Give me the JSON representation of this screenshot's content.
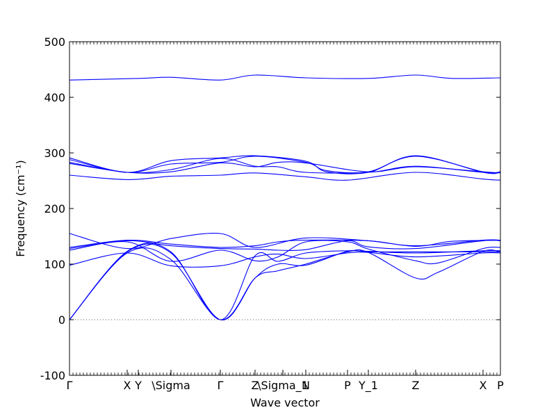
{
  "chart_data": {
    "type": "line",
    "xlabel": "Wave vector",
    "ylabel": "Frequency (cm⁻¹)",
    "ylim": [
      -100,
      500
    ],
    "y_ticks": [
      -100,
      0,
      100,
      200,
      300,
      400,
      500
    ],
    "x_range": [
      0,
      6.2
    ],
    "zero_line": {
      "y": 0,
      "style": "dotted"
    },
    "grid": false,
    "colors": {
      "series": "#0000ff",
      "axes": "#000000",
      "zero_line": "#555555"
    },
    "x_labels": [
      {
        "x": 0.0,
        "text": "Γ"
      },
      {
        "x": 0.83,
        "text": "X"
      },
      {
        "x": 0.99,
        "text": "Y"
      },
      {
        "x": 1.46,
        "text": "\\Sigma"
      },
      {
        "x": 2.17,
        "text": "Γ"
      },
      {
        "x": 2.67,
        "text": "Z"
      },
      {
        "x": 3.07,
        "text": "\\Sigma_1"
      },
      {
        "x": 3.4,
        "text": "N"
      },
      {
        "x": 4.0,
        "text": "P"
      },
      {
        "x": 4.3,
        "text": "Y_1"
      },
      {
        "x": 4.98,
        "text": "Z"
      },
      {
        "x": 5.95,
        "text": "X"
      },
      {
        "x": 6.2,
        "text": "P"
      }
    ],
    "series": [
      {
        "points": [
          [
            0,
            431
          ],
          [
            1.0,
            434
          ],
          [
            1.46,
            436
          ],
          [
            2.17,
            431
          ],
          [
            2.67,
            440
          ],
          [
            3.4,
            435
          ],
          [
            4.3,
            434
          ],
          [
            4.98,
            440
          ],
          [
            5.5,
            434
          ],
          [
            6.2,
            435
          ]
        ]
      },
      {
        "points": [
          [
            0,
            291
          ],
          [
            0.83,
            265
          ],
          [
            1.46,
            286
          ],
          [
            2.17,
            291
          ],
          [
            2.67,
            295
          ],
          [
            3.4,
            285
          ],
          [
            3.7,
            266
          ],
          [
            4.3,
            265
          ],
          [
            4.98,
            295
          ],
          [
            5.95,
            265
          ],
          [
            6.2,
            265
          ]
        ]
      },
      {
        "points": [
          [
            0,
            288
          ],
          [
            0.83,
            265
          ],
          [
            1.46,
            280
          ],
          [
            2.17,
            283
          ],
          [
            2.67,
            294
          ],
          [
            3.4,
            283
          ],
          [
            3.7,
            268
          ],
          [
            4.3,
            266
          ],
          [
            4.98,
            294
          ],
          [
            5.95,
            266
          ],
          [
            6.2,
            266
          ]
        ]
      },
      {
        "points": [
          [
            0,
            283
          ],
          [
            0.83,
            265
          ],
          [
            1.46,
            270
          ],
          [
            2.17,
            290
          ],
          [
            2.67,
            276
          ],
          [
            3.0,
            275
          ],
          [
            3.4,
            265
          ],
          [
            4.3,
            265
          ],
          [
            4.98,
            276
          ],
          [
            5.95,
            265
          ],
          [
            6.2,
            265
          ]
        ]
      },
      {
        "points": [
          [
            0,
            281
          ],
          [
            0.83,
            265
          ],
          [
            1.46,
            266
          ],
          [
            2.17,
            282
          ],
          [
            2.67,
            275
          ],
          [
            3.0,
            283
          ],
          [
            3.4,
            282
          ],
          [
            4.3,
            266
          ],
          [
            4.98,
            275
          ],
          [
            5.95,
            266
          ],
          [
            6.2,
            264
          ]
        ]
      },
      {
        "points": [
          [
            0,
            260
          ],
          [
            0.83,
            252
          ],
          [
            1.46,
            258
          ],
          [
            2.17,
            260
          ],
          [
            2.67,
            264
          ],
          [
            3.4,
            257
          ],
          [
            4.0,
            251
          ],
          [
            4.98,
            265
          ],
          [
            5.95,
            253
          ],
          [
            6.2,
            251
          ]
        ]
      },
      {
        "points": [
          [
            0,
            155
          ],
          [
            0.83,
            128
          ],
          [
            1.46,
            146
          ],
          [
            2.17,
            155
          ],
          [
            2.67,
            130
          ],
          [
            3.4,
            147
          ],
          [
            4.3,
            142
          ],
          [
            4.98,
            132
          ],
          [
            5.5,
            141
          ],
          [
            6.2,
            143
          ]
        ]
      },
      {
        "points": [
          [
            0,
            130
          ],
          [
            0.83,
            143
          ],
          [
            1.46,
            136
          ],
          [
            2.17,
            130
          ],
          [
            2.67,
            133
          ],
          [
            3.0,
            140
          ],
          [
            3.4,
            143
          ],
          [
            4.3,
            142
          ],
          [
            4.98,
            133
          ],
          [
            5.95,
            143
          ],
          [
            6.2,
            143
          ]
        ]
      },
      {
        "points": [
          [
            0,
            128
          ],
          [
            0.83,
            142
          ],
          [
            1.46,
            133
          ],
          [
            2.17,
            128
          ],
          [
            2.67,
            127
          ],
          [
            3.0,
            125
          ],
          [
            3.4,
            126
          ],
          [
            4.0,
            142
          ],
          [
            4.3,
            131
          ],
          [
            4.98,
            128
          ],
          [
            5.95,
            142
          ],
          [
            6.2,
            142
          ]
        ]
      },
      {
        "points": [
          [
            0,
            125
          ],
          [
            0.83,
            140
          ],
          [
            1.46,
            105
          ],
          [
            2.17,
            125
          ],
          [
            2.67,
            106
          ],
          [
            3.0,
            113
          ],
          [
            3.4,
            140
          ],
          [
            4.0,
            140
          ],
          [
            4.3,
            127
          ],
          [
            4.98,
            106
          ],
          [
            5.3,
            102
          ],
          [
            5.95,
            128
          ],
          [
            6.2,
            130
          ]
        ]
      },
      {
        "points": [
          [
            0,
            98
          ],
          [
            0.83,
            120
          ],
          [
            1.46,
            97
          ],
          [
            2.17,
            97
          ],
          [
            2.67,
            113
          ],
          [
            3.0,
            118
          ],
          [
            3.4,
            110
          ],
          [
            4.0,
            120
          ],
          [
            4.3,
            121
          ],
          [
            4.98,
            113
          ],
          [
            5.95,
            120
          ],
          [
            6.2,
            120
          ]
        ]
      },
      {
        "points": [
          [
            0,
            0
          ],
          [
            0.83,
            120
          ],
          [
            1.46,
            108
          ],
          [
            2.17,
            0
          ],
          [
            2.67,
            75
          ],
          [
            3.0,
            88
          ],
          [
            3.4,
            100
          ],
          [
            4.0,
            122
          ],
          [
            4.3,
            121
          ],
          [
            4.98,
            75
          ],
          [
            5.3,
            85
          ],
          [
            5.95,
            123
          ],
          [
            6.2,
            122
          ]
        ]
      },
      {
        "points": [
          [
            0,
            0
          ],
          [
            0.83,
            122
          ],
          [
            1.46,
            120
          ],
          [
            2.17,
            0
          ],
          [
            2.67,
            75
          ],
          [
            3.0,
            100
          ],
          [
            3.4,
            98
          ],
          [
            4.0,
            123
          ],
          [
            4.3,
            122
          ],
          [
            4.98,
            122
          ],
          [
            5.95,
            122
          ],
          [
            6.2,
            122
          ]
        ]
      },
      {
        "points": [
          [
            0,
            0
          ],
          [
            0.83,
            123
          ],
          [
            1.46,
            122
          ],
          [
            2.17,
            0
          ],
          [
            2.67,
            115
          ],
          [
            3.0,
            105
          ],
          [
            3.4,
            120
          ],
          [
            4.0,
            124
          ],
          [
            4.3,
            123
          ],
          [
            4.98,
            120
          ],
          [
            5.95,
            124
          ],
          [
            6.2,
            124
          ]
        ]
      }
    ]
  }
}
